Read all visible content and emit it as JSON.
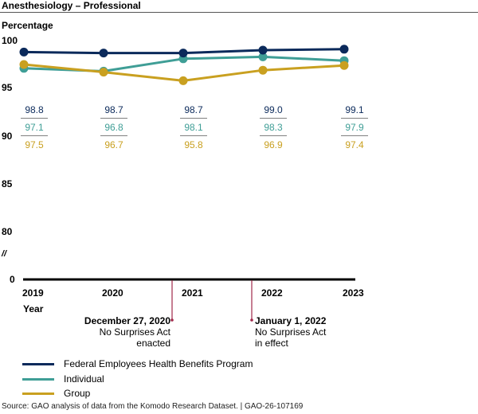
{
  "chart_data": {
    "type": "line",
    "title": "Anesthesiology – Professional",
    "ylabel": "Percentage",
    "xlabel": "Year",
    "categories": [
      "2019",
      "2020",
      "2021",
      "2022",
      "2023"
    ],
    "yticks": [
      "100",
      "95",
      "90",
      "85",
      "80",
      "0"
    ],
    "ylim": [
      80,
      100
    ],
    "axis_break": true,
    "axis_break_symbol": "//",
    "grid": false,
    "legend_position": "bottom-left",
    "series": [
      {
        "name": "Federal Employees Health Benefits Program",
        "color": "#0b2a5b",
        "values": [
          98.8,
          98.7,
          98.7,
          99.0,
          99.1
        ],
        "labels": [
          "98.8",
          "98.7",
          "98.7",
          "99.0",
          "99.1"
        ]
      },
      {
        "name": "Individual",
        "color": "#3f9e96",
        "values": [
          97.1,
          96.8,
          98.1,
          98.3,
          97.9
        ],
        "labels": [
          "97.1",
          "96.8",
          "98.1",
          "98.3",
          "97.9"
        ]
      },
      {
        "name": "Group",
        "color": "#c9a020",
        "values": [
          97.5,
          96.7,
          95.8,
          96.9,
          97.4
        ],
        "labels": [
          "97.5",
          "96.7",
          "95.8",
          "96.9",
          "97.4"
        ]
      }
    ],
    "annotations": [
      {
        "date": "December 27, 2020",
        "text_line1": "No Surprises Act",
        "text_line2": "enacted",
        "color": "#a0284a"
      },
      {
        "date": "January 1, 2022",
        "text_line1": "No Surprises Act",
        "text_line2": "in effect",
        "color": "#a0284a"
      }
    ]
  },
  "source": "Source: GAO analysis of data from the Komodo Research Dataset.  |  GAO-26-107169"
}
